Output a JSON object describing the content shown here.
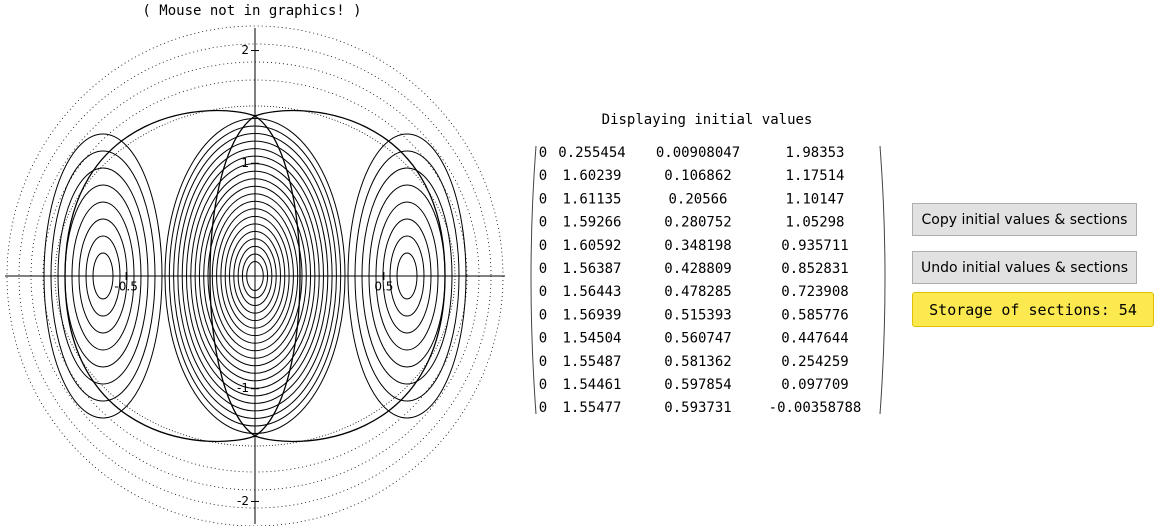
{
  "status": "( Mouse not in graphics! )",
  "plot": {
    "xlim": [
      -0.97,
      0.97
    ],
    "ylim": [
      -2.2,
      2.2
    ],
    "xticks": [
      -0.5,
      0.5
    ],
    "yticks": [
      -2,
      -1,
      1,
      2
    ]
  },
  "matrix": {
    "title": "Displaying initial values",
    "rows": [
      [
        0,
        0.255454,
        0.00908047,
        1.98353
      ],
      [
        0,
        1.60239,
        0.106862,
        1.17514
      ],
      [
        0,
        1.61135,
        0.20566,
        1.10147
      ],
      [
        0,
        1.59266,
        0.280752,
        1.05298
      ],
      [
        0,
        1.60592,
        0.348198,
        0.935711
      ],
      [
        0,
        1.56387,
        0.428809,
        0.852831
      ],
      [
        0,
        1.56443,
        0.478285,
        0.723908
      ],
      [
        0,
        1.56939,
        0.515393,
        0.585776
      ],
      [
        0,
        1.54504,
        0.560747,
        0.447644
      ],
      [
        0,
        1.55487,
        0.581362,
        0.254259
      ],
      [
        0,
        1.54461,
        0.597854,
        0.097709
      ],
      [
        0,
        1.55477,
        0.593731,
        -0.00358788
      ]
    ]
  },
  "buttons": [
    "Copy initial values & sections",
    "Undo initial values & sections"
  ],
  "storage": "Storage of sections: 54"
}
